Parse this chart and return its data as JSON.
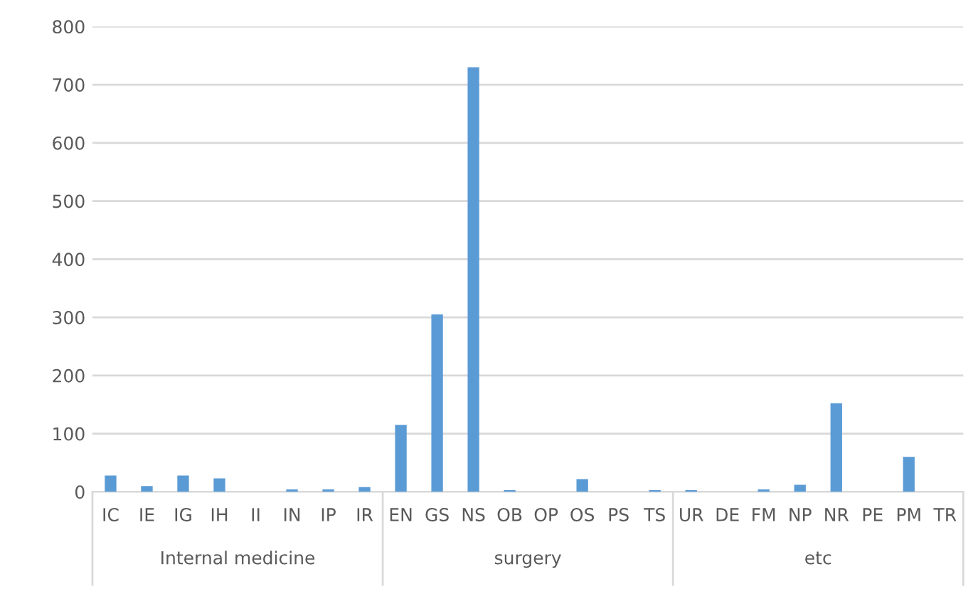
{
  "chart_data": {
    "type": "bar",
    "categories": [
      "IC",
      "IE",
      "IG",
      "IH",
      "II",
      "IN",
      "IP",
      "IR",
      "EN",
      "GS",
      "NS",
      "OB",
      "OP",
      "OS",
      "PS",
      "TS",
      "UR",
      "DE",
      "FM",
      "NP",
      "NR",
      "PE",
      "PM",
      "TR"
    ],
    "values": [
      28,
      10,
      28,
      23,
      0,
      4,
      4,
      8,
      115,
      305,
      730,
      3,
      0,
      22,
      0,
      3,
      3,
      0,
      4,
      12,
      152,
      0,
      60,
      0
    ],
    "color": "#5b9bd5",
    "ylim": [
      0,
      800
    ],
    "yticks": [
      0,
      100,
      200,
      300,
      400,
      500,
      600,
      700,
      800
    ],
    "grid": "y",
    "annotations": [
      "Internal medicine",
      "surgery",
      "etc"
    ]
  }
}
